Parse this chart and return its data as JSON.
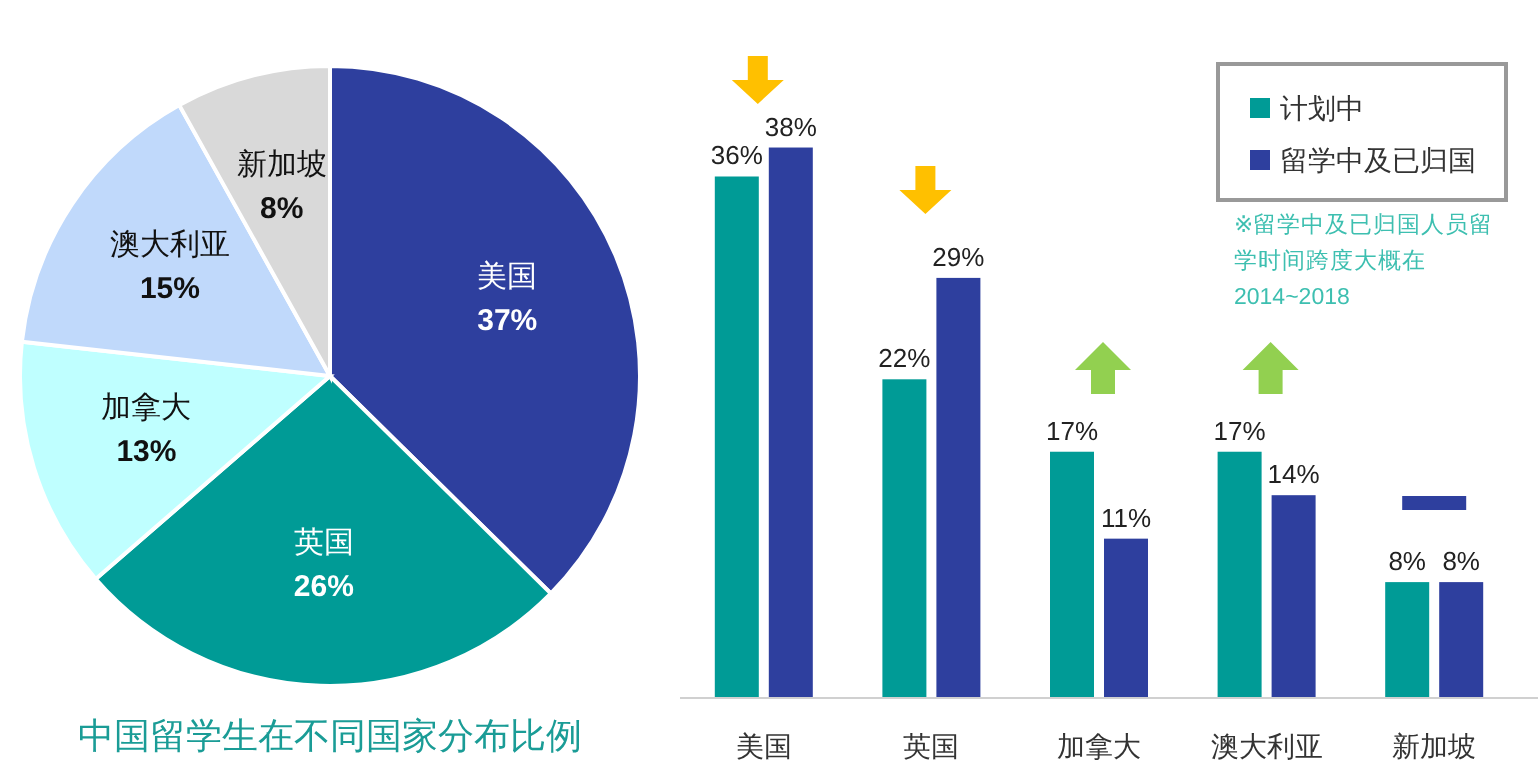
{
  "chart_data": [
    {
      "type": "pie",
      "title": "中国留学生在不同国家分布比例",
      "categories": [
        "美国",
        "英国",
        "加拿大",
        "澳大利亚",
        "新加坡"
      ],
      "values": [
        37,
        26,
        13,
        15,
        8
      ],
      "value_labels": [
        "37%",
        "26%",
        "13%",
        "15%",
        "8%"
      ],
      "colors": [
        "#2e3f9e",
        "#009b96",
        "#bfffff",
        "#c0d9fb",
        "#d9d9d9"
      ]
    },
    {
      "type": "bar",
      "categories": [
        "美国",
        "英国",
        "加拿大",
        "澳大利亚",
        "新加坡"
      ],
      "series": [
        {
          "name": "计划中",
          "color": "#009b96",
          "values": [
            36,
            22,
            17,
            17,
            8
          ],
          "value_labels": [
            "36%",
            "22%",
            "17%",
            "17%",
            "8%"
          ]
        },
        {
          "name": "留学中及已归国",
          "color": "#2e3f9e",
          "values": [
            38,
            29,
            11,
            14,
            8
          ],
          "value_labels": [
            "38%",
            "29%",
            "11%",
            "14%",
            "8%"
          ]
        }
      ],
      "tick_labels": "x",
      "legend": "top right",
      "annotations": [
        "※留学中及已归国人员留学时间跨度大概在2014~2018"
      ]
    }
  ]
}
